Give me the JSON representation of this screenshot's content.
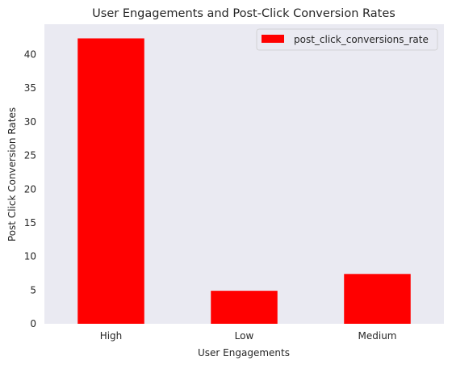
{
  "chart_data": {
    "type": "bar",
    "title": "User Engagements and Post-Click Conversion Rates",
    "xlabel": "User Engagements",
    "ylabel": "Post Click Conversion Rates",
    "categories": [
      "High",
      "Low",
      "Medium"
    ],
    "series": [
      {
        "name": "post_click_conversions_rate",
        "values": [
          42.4,
          4.9,
          7.4
        ],
        "color": "#ff0000"
      }
    ],
    "ylim": [
      0,
      44.5
    ],
    "yticks": [
      0,
      5,
      10,
      15,
      20,
      25,
      30,
      35,
      40
    ],
    "grid": false,
    "legend_position": "top-right",
    "background_color": "#eaeaf2"
  }
}
